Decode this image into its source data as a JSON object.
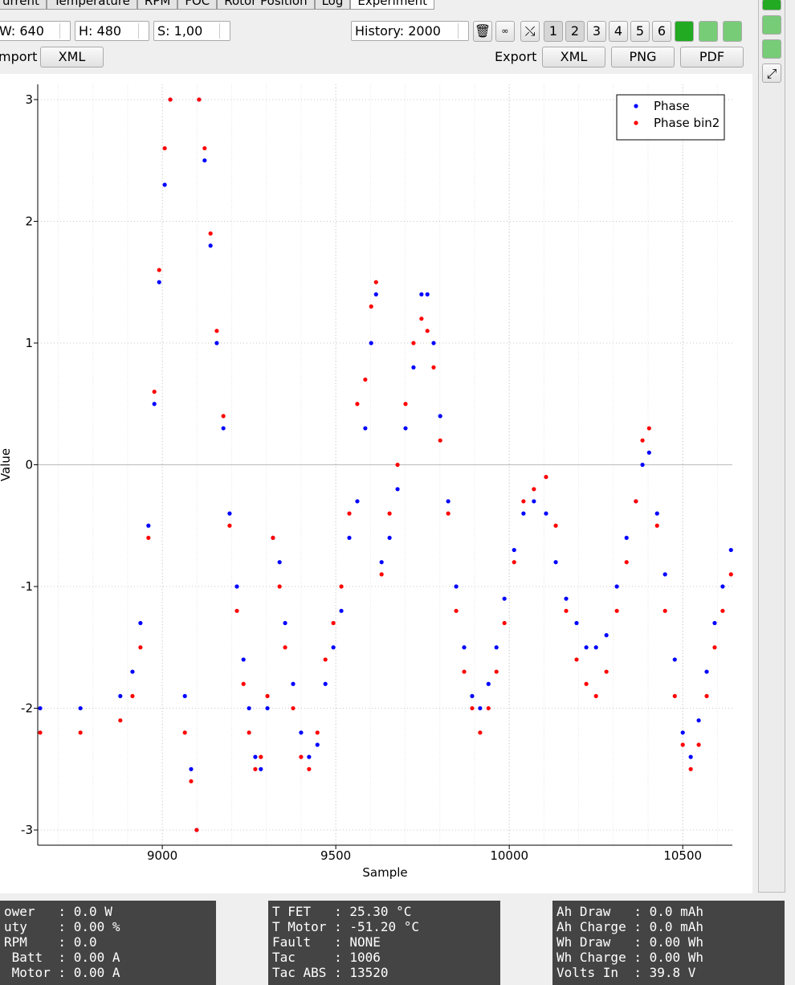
{
  "tabs": [
    "urrent",
    "Temperature",
    "RPM",
    "FOC",
    "Rotor Position",
    "Log",
    "Experiment"
  ],
  "toolbar": {
    "width": "W: 640",
    "height": "H: 480",
    "scale": "S: 1,00",
    "history": "History: 2000",
    "plot_buttons": [
      "1",
      "2",
      "3",
      "4",
      "5",
      "6"
    ],
    "import_label": "mport",
    "import_xml": "XML",
    "export_label": "Export",
    "export_xml": "XML",
    "export_png": "PNG",
    "export_pdf": "PDF"
  },
  "chart_data": {
    "type": "scatter",
    "xlabel": "Sample",
    "ylabel": "Value",
    "xlim": [
      8641,
      10643
    ],
    "ylim": [
      -3.125,
      3.125
    ],
    "xticks": [
      9000,
      9500,
      10000,
      10500
    ],
    "yticks": [
      -3,
      -2,
      -1,
      0,
      1,
      2,
      3
    ],
    "grid": true,
    "legend": "top-right",
    "x": [
      8648,
      8764,
      8879,
      8914,
      8937,
      8960,
      8977,
      8991,
      9007,
      9023,
      9065,
      9083,
      9099,
      9106,
      9122,
      9139,
      9157,
      9176,
      9194,
      9215,
      9234,
      9250,
      9268,
      9284,
      9303,
      9319,
      9338,
      9354,
      9377,
      9400,
      9423,
      9447,
      9470,
      9493,
      9516,
      9539,
      9562,
      9585,
      9602,
      9616,
      9632,
      9655,
      9678,
      9701,
      9724,
      9747,
      9764,
      9782,
      9801,
      9824,
      9847,
      9870,
      9893,
      9916,
      9940,
      9963,
      9986,
      10014,
      10041,
      10071,
      10106,
      10134,
      10164,
      10194,
      10222,
      10250,
      10280,
      10310,
      10338,
      10365,
      10384,
      10403,
      10426,
      10449,
      10477,
      10500,
      10523,
      10546,
      10569,
      10592,
      10615,
      10639
    ],
    "series": [
      {
        "name": "Phase",
        "color": "#0000ff",
        "values": [
          -2.0,
          -2.0,
          -1.9,
          -1.7,
          -1.3,
          -0.5,
          0.5,
          1.5,
          2.3,
          3.0,
          -1.9,
          -2.5,
          -3.0,
          3.0,
          2.5,
          1.8,
          1.0,
          0.3,
          -0.4,
          -1.0,
          -1.6,
          -2.0,
          -2.4,
          -2.5,
          -2.0,
          -0.6,
          -0.8,
          -1.3,
          -1.8,
          -2.2,
          -2.4,
          -2.3,
          -1.8,
          -1.5,
          -1.2,
          -0.6,
          -0.3,
          0.3,
          1.0,
          1.4,
          -0.8,
          -0.6,
          -0.2,
          0.3,
          0.8,
          1.4,
          1.4,
          1.0,
          0.4,
          -0.3,
          -1.0,
          -1.5,
          -1.9,
          -2.0,
          -1.8,
          -1.5,
          -1.1,
          -0.7,
          -0.4,
          -0.3,
          -0.4,
          -0.8,
          -1.1,
          -1.3,
          -1.5,
          -1.5,
          -1.4,
          -1.0,
          -0.6,
          -0.3,
          0.0,
          0.1,
          -0.4,
          -0.9,
          -1.6,
          -2.2,
          -2.4,
          -2.1,
          -1.7,
          -1.3,
          -1.0,
          -0.7
        ]
      },
      {
        "name": "Phase bin2",
        "color": "#ff0000",
        "values": [
          -2.2,
          -2.2,
          -2.1,
          -1.9,
          -1.5,
          -0.6,
          0.6,
          1.6,
          2.6,
          3.0,
          -2.2,
          -2.6,
          -3.0,
          3.0,
          2.6,
          1.9,
          1.1,
          0.4,
          -0.5,
          -1.2,
          -1.8,
          -2.2,
          -2.5,
          -2.4,
          -1.9,
          -0.6,
          -1.0,
          -1.5,
          -2.0,
          -2.4,
          -2.5,
          -2.2,
          -1.6,
          -1.3,
          -1.0,
          -0.4,
          0.5,
          0.7,
          1.3,
          1.5,
          -0.9,
          -0.4,
          0.0,
          0.5,
          1.0,
          1.2,
          1.1,
          0.8,
          0.2,
          -0.4,
          -1.2,
          -1.7,
          -2.0,
          -2.2,
          -2.0,
          -1.7,
          -1.3,
          -0.8,
          -0.3,
          -0.2,
          -0.1,
          -0.5,
          -1.2,
          -1.6,
          -1.8,
          -1.9,
          -1.7,
          -1.2,
          -0.8,
          -0.3,
          0.2,
          0.3,
          -0.5,
          -1.2,
          -1.9,
          -2.3,
          -2.5,
          -2.3,
          -1.9,
          -1.5,
          -1.2,
          -0.9
        ]
      }
    ]
  },
  "status_panels": [
    [
      "ower   : 0.0 W",
      "uty    : 0.00 %",
      "RPM    : 0.0",
      " Batt  : 0.00 A",
      " Motor : 0.00 A"
    ],
    [
      "T FET   : 25.30 °C",
      "T Motor : -51.20 °C",
      "Fault   : NONE",
      "Tac     : 1006",
      "Tac ABS : 13520"
    ],
    [
      "Ah Draw   : 0.0 mAh",
      "Ah Charge : 0.0 mAh",
      "Wh Draw   : 0.00 Wh",
      "Wh Charge : 0.00 Wh",
      "Volts In  : 39.8 V"
    ]
  ]
}
